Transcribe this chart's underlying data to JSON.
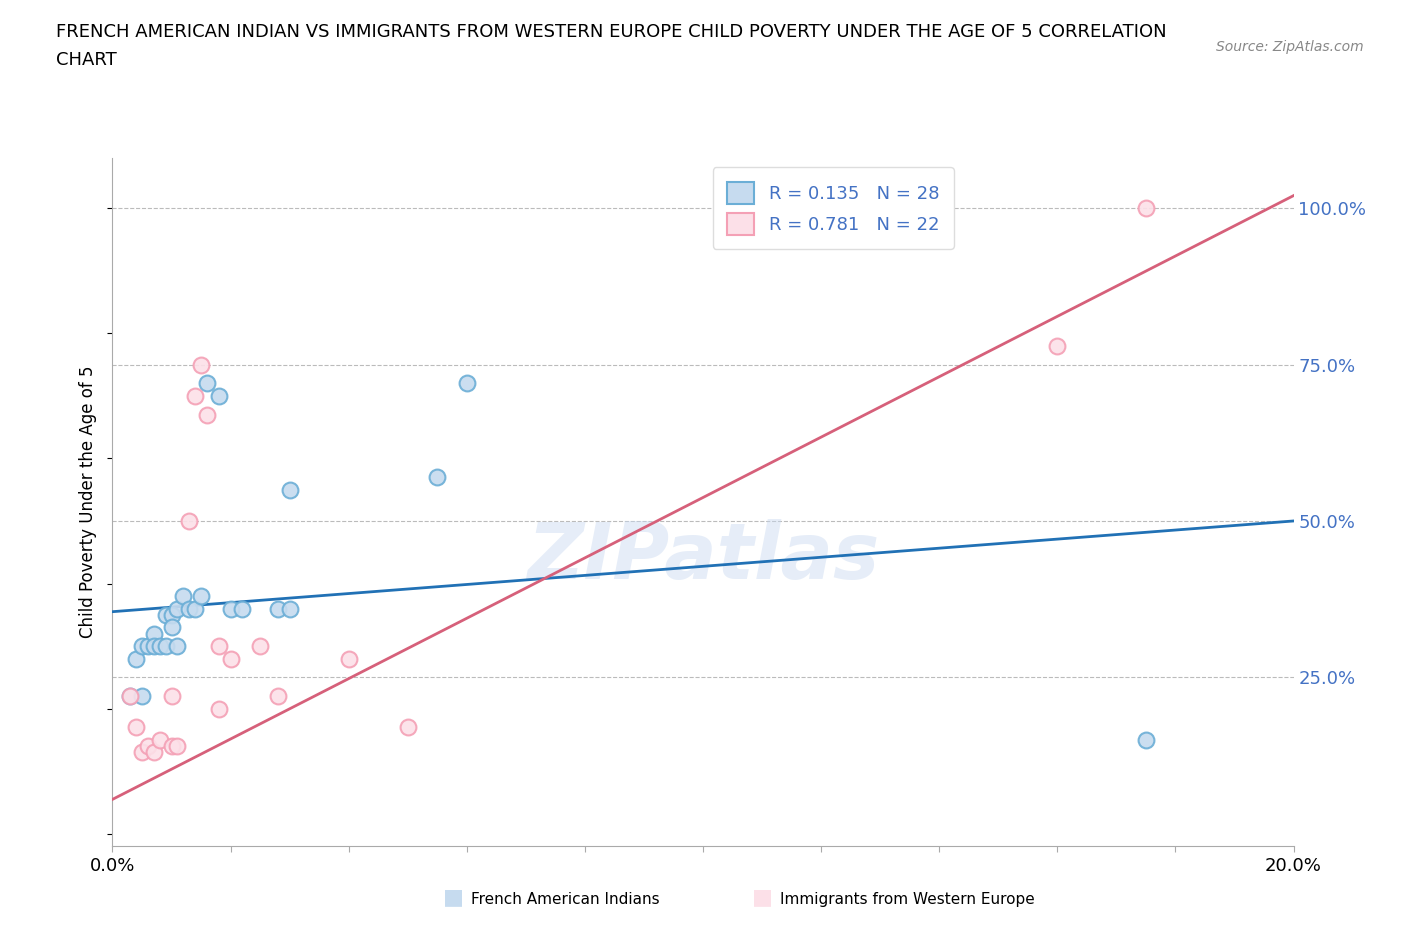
{
  "title_line1": "FRENCH AMERICAN INDIAN VS IMMIGRANTS FROM WESTERN EUROPE CHILD POVERTY UNDER THE AGE OF 5 CORRELATION",
  "title_line2": "CHART",
  "source": "Source: ZipAtlas.com",
  "ylabel": "Child Poverty Under the Age of 5",
  "xlim": [
    0.0,
    0.2
  ],
  "ylim": [
    -0.02,
    1.08
  ],
  "xticks": [
    0.0,
    0.02,
    0.04,
    0.06,
    0.08,
    0.1,
    0.12,
    0.14,
    0.16,
    0.18,
    0.2
  ],
  "yticks": [
    0.25,
    0.5,
    0.75,
    1.0
  ],
  "ytick_labels": [
    "25.0%",
    "50.0%",
    "75.0%",
    "100.0%"
  ],
  "blue_scatter_x": [
    0.003,
    0.004,
    0.005,
    0.005,
    0.006,
    0.007,
    0.007,
    0.008,
    0.009,
    0.009,
    0.01,
    0.01,
    0.011,
    0.011,
    0.012,
    0.013,
    0.014,
    0.015,
    0.016,
    0.018,
    0.02,
    0.022,
    0.028,
    0.03,
    0.03,
    0.055,
    0.06,
    0.175
  ],
  "blue_scatter_y": [
    0.22,
    0.28,
    0.3,
    0.22,
    0.3,
    0.32,
    0.3,
    0.3,
    0.35,
    0.3,
    0.35,
    0.33,
    0.36,
    0.3,
    0.38,
    0.36,
    0.36,
    0.38,
    0.72,
    0.7,
    0.36,
    0.36,
    0.36,
    0.36,
    0.55,
    0.57,
    0.72,
    0.15
  ],
  "pink_scatter_x": [
    0.003,
    0.004,
    0.005,
    0.006,
    0.007,
    0.008,
    0.01,
    0.01,
    0.011,
    0.013,
    0.014,
    0.015,
    0.016,
    0.018,
    0.018,
    0.02,
    0.025,
    0.028,
    0.04,
    0.05,
    0.16,
    0.175
  ],
  "pink_scatter_y": [
    0.22,
    0.17,
    0.13,
    0.14,
    0.13,
    0.15,
    0.14,
    0.22,
    0.14,
    0.5,
    0.7,
    0.75,
    0.67,
    0.2,
    0.3,
    0.28,
    0.3,
    0.22,
    0.28,
    0.17,
    0.78,
    1.0
  ],
  "blue_line_x": [
    0.0,
    0.2
  ],
  "blue_line_y": [
    0.355,
    0.5
  ],
  "pink_line_x": [
    0.0,
    0.2
  ],
  "pink_line_y": [
    0.055,
    1.02
  ],
  "blue_dot_color": "#6baed6",
  "blue_face_color": "#c6dbef",
  "pink_dot_color": "#f4a0b5",
  "pink_face_color": "#fce0e8",
  "blue_line_color": "#2171b5",
  "pink_line_color": "#d6607a",
  "R_blue": "0.135",
  "N_blue": "28",
  "R_pink": "0.781",
  "N_pink": "22",
  "legend_label_blue": "French American Indians",
  "legend_label_pink": "Immigrants from Western Europe",
  "watermark": "ZIPatlas",
  "tick_color": "#4472c4"
}
